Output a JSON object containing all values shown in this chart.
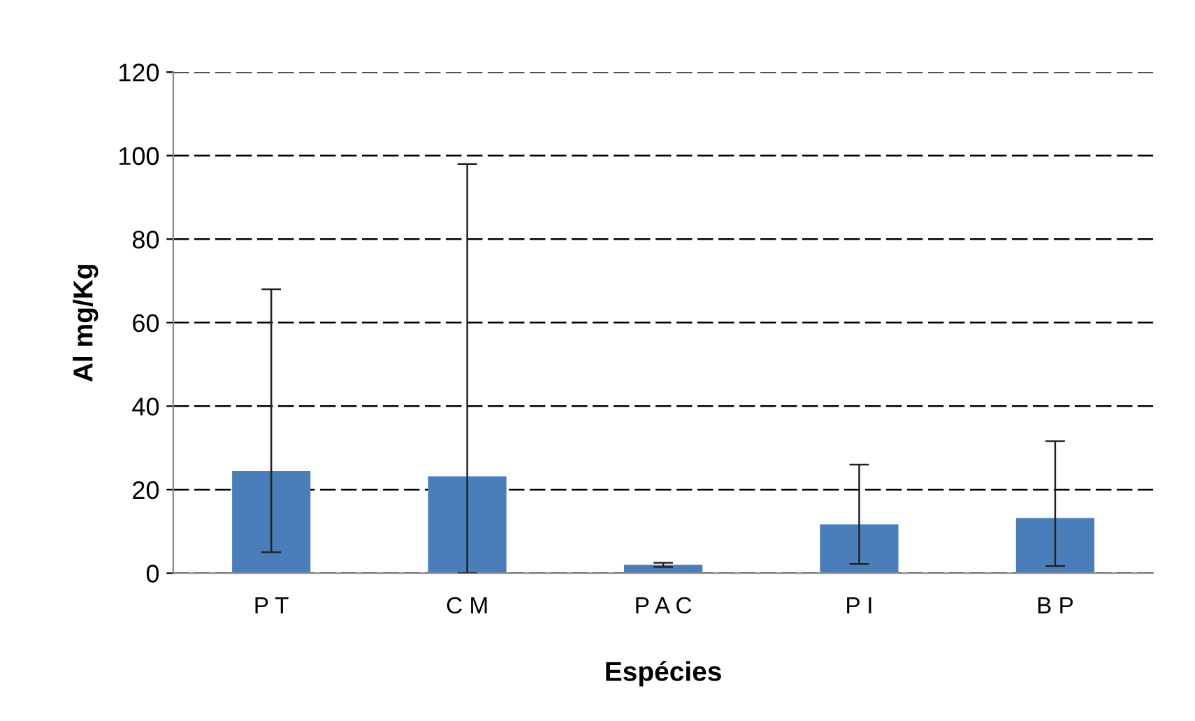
{
  "chart_data": {
    "type": "bar",
    "xlabel": "Espécies",
    "ylabel": "Al mg/Kg",
    "categories": [
      "P T",
      "C M",
      "P A C",
      "P I",
      "B P"
    ],
    "values": [
      24.5,
      23.2,
      2,
      11.7,
      13.2
    ],
    "errors": [
      [
        5,
        68
      ],
      [
        0,
        98
      ],
      [
        1.5,
        2.5
      ],
      [
        2.2,
        26
      ],
      [
        1.7,
        31.6
      ]
    ],
    "color": "#4a7ebb",
    "ylim": [
      0,
      120
    ],
    "yticks": [
      0,
      20,
      40,
      60,
      80,
      100,
      120
    ],
    "grid": "y"
  }
}
